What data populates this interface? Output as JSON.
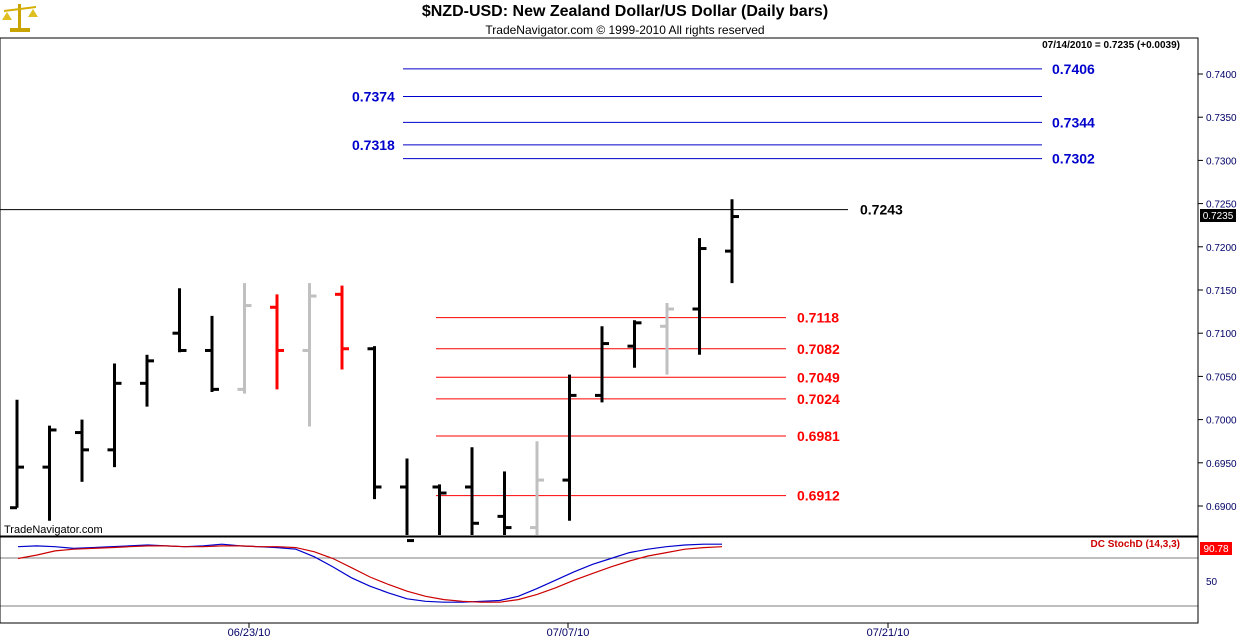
{
  "header": {
    "title": "$NZD-USD:  New Zealand Dollar/US Dollar  (Daily bars)",
    "copyright": "TradeNavigator.com © 1999-2010 All rights reserved",
    "status": "07/14/2010 = 0.7235 (+0.0039)",
    "watermark": "TradeNavigator.com",
    "logo_icon": "scales-icon"
  },
  "chart_data": [
    {
      "type": "ohlc-bar",
      "ylim": [
        0.686,
        0.746
      ],
      "yticks": [
        "0.6900",
        "0.6950",
        "0.7000",
        "0.7050",
        "0.7100",
        "0.7150",
        "0.7200",
        "0.7250",
        "0.7300",
        "0.7350",
        "0.7400"
      ],
      "yticks_values": [
        0.69,
        0.695,
        0.7,
        0.705,
        0.71,
        0.715,
        0.72,
        0.725,
        0.73,
        0.735,
        0.74
      ],
      "xtick_labels": [
        "06/23/10",
        "07/07/10",
        "07/21/10"
      ],
      "last_price": "0.7235",
      "colors": {
        "bar_default": "#000000",
        "bar_gray": "#c0c0c0",
        "bar_red": "#ff0000",
        "blue_level": "#0000cc",
        "red_level": "#ff0000",
        "axis_text": "#000066"
      },
      "bars": [
        {
          "o": 0.6898,
          "h": 0.7023,
          "l": 0.6898,
          "c": 0.6945,
          "color": "black"
        },
        {
          "o": 0.6945,
          "h": 0.6993,
          "l": 0.6883,
          "c": 0.6988,
          "color": "black"
        },
        {
          "o": 0.6985,
          "h": 0.7,
          "l": 0.6928,
          "c": 0.6965,
          "color": "black"
        },
        {
          "o": 0.6965,
          "h": 0.7065,
          "l": 0.6945,
          "c": 0.7042,
          "color": "black"
        },
        {
          "o": 0.7042,
          "h": 0.7075,
          "l": 0.7015,
          "c": 0.7068,
          "color": "black"
        },
        {
          "o": 0.71,
          "h": 0.7152,
          "l": 0.7078,
          "c": 0.708,
          "color": "black"
        },
        {
          "o": 0.708,
          "h": 0.712,
          "l": 0.7032,
          "c": 0.7035,
          "color": "black"
        },
        {
          "o": 0.7035,
          "h": 0.7158,
          "l": 0.703,
          "c": 0.7132,
          "color": "gray"
        },
        {
          "o": 0.713,
          "h": 0.7145,
          "l": 0.7035,
          "c": 0.708,
          "color": "red"
        },
        {
          "o": 0.708,
          "h": 0.7158,
          "l": 0.6992,
          "c": 0.7143,
          "color": "gray"
        },
        {
          "o": 0.7145,
          "h": 0.7155,
          "l": 0.7058,
          "c": 0.7082,
          "color": "red"
        },
        {
          "o": 0.7082,
          "h": 0.7085,
          "l": 0.6908,
          "c": 0.6922,
          "color": "black"
        },
        {
          "o": 0.6922,
          "h": 0.6955,
          "l": 0.686,
          "c": 0.686,
          "color": "black"
        },
        {
          "o": 0.6922,
          "h": 0.6925,
          "l": 0.686,
          "c": 0.6915,
          "color": "black"
        },
        {
          "o": 0.6922,
          "h": 0.6968,
          "l": 0.686,
          "c": 0.688,
          "color": "black"
        },
        {
          "o": 0.6888,
          "h": 0.694,
          "l": 0.686,
          "c": 0.6875,
          "color": "black"
        },
        {
          "o": 0.6875,
          "h": 0.6975,
          "l": 0.686,
          "c": 0.693,
          "color": "gray"
        },
        {
          "o": 0.693,
          "h": 0.7052,
          "l": 0.6883,
          "c": 0.7028,
          "color": "black"
        },
        {
          "o": 0.7028,
          "h": 0.7108,
          "l": 0.702,
          "c": 0.7088,
          "color": "black"
        },
        {
          "o": 0.7085,
          "h": 0.7115,
          "l": 0.706,
          "c": 0.7112,
          "color": "black"
        },
        {
          "o": 0.7108,
          "h": 0.7135,
          "l": 0.7052,
          "c": 0.7128,
          "color": "gray"
        },
        {
          "o": 0.7128,
          "h": 0.721,
          "l": 0.7075,
          "c": 0.7198,
          "color": "black"
        },
        {
          "o": 0.7195,
          "h": 0.7255,
          "l": 0.7158,
          "c": 0.7235,
          "color": "black"
        }
      ],
      "black_level": {
        "value": 0.7243,
        "label": "0.7243"
      },
      "blue_levels": [
        {
          "value": 0.7406,
          "label": "0.7406",
          "side": "right"
        },
        {
          "value": 0.7374,
          "label": "0.7374",
          "side": "left"
        },
        {
          "value": 0.7344,
          "label": "0.7344",
          "side": "right"
        },
        {
          "value": 0.7318,
          "label": "0.7318",
          "side": "left"
        },
        {
          "value": 0.7302,
          "label": "0.7302",
          "side": "right"
        }
      ],
      "red_levels": [
        {
          "value": 0.7118,
          "label": "0.7118"
        },
        {
          "value": 0.7082,
          "label": "0.7082"
        },
        {
          "value": 0.7049,
          "label": "0.7049"
        },
        {
          "value": 0.7024,
          "label": "0.7024"
        },
        {
          "value": 0.6981,
          "label": "0.6981"
        },
        {
          "value": 0.6912,
          "label": "0.6912"
        }
      ]
    },
    {
      "type": "line",
      "title": "DC StochD (14,3,3)",
      "ylim": [
        0,
        100
      ],
      "yticks": [
        "50"
      ],
      "last_value": "90.78",
      "series": [
        {
          "color": "#0000cc",
          "values": [
            92,
            93,
            92,
            90,
            91,
            92,
            93,
            94,
            93,
            92,
            93,
            95,
            93,
            92,
            91,
            89,
            80,
            68,
            55,
            45,
            37,
            30,
            27,
            26,
            26,
            27,
            28,
            33,
            42,
            52,
            62,
            71,
            78,
            85,
            89,
            92,
            94,
            95,
            95
          ]
        },
        {
          "color": "#cc0000",
          "values": [
            78,
            82,
            87,
            89,
            90,
            91,
            92,
            93,
            93,
            92,
            92,
            93,
            93,
            92,
            92,
            91,
            86,
            78,
            67,
            56,
            47,
            39,
            33,
            29,
            27,
            26,
            26,
            29,
            35,
            43,
            52,
            60,
            68,
            75,
            81,
            85,
            89,
            91,
            92
          ]
        }
      ]
    }
  ]
}
